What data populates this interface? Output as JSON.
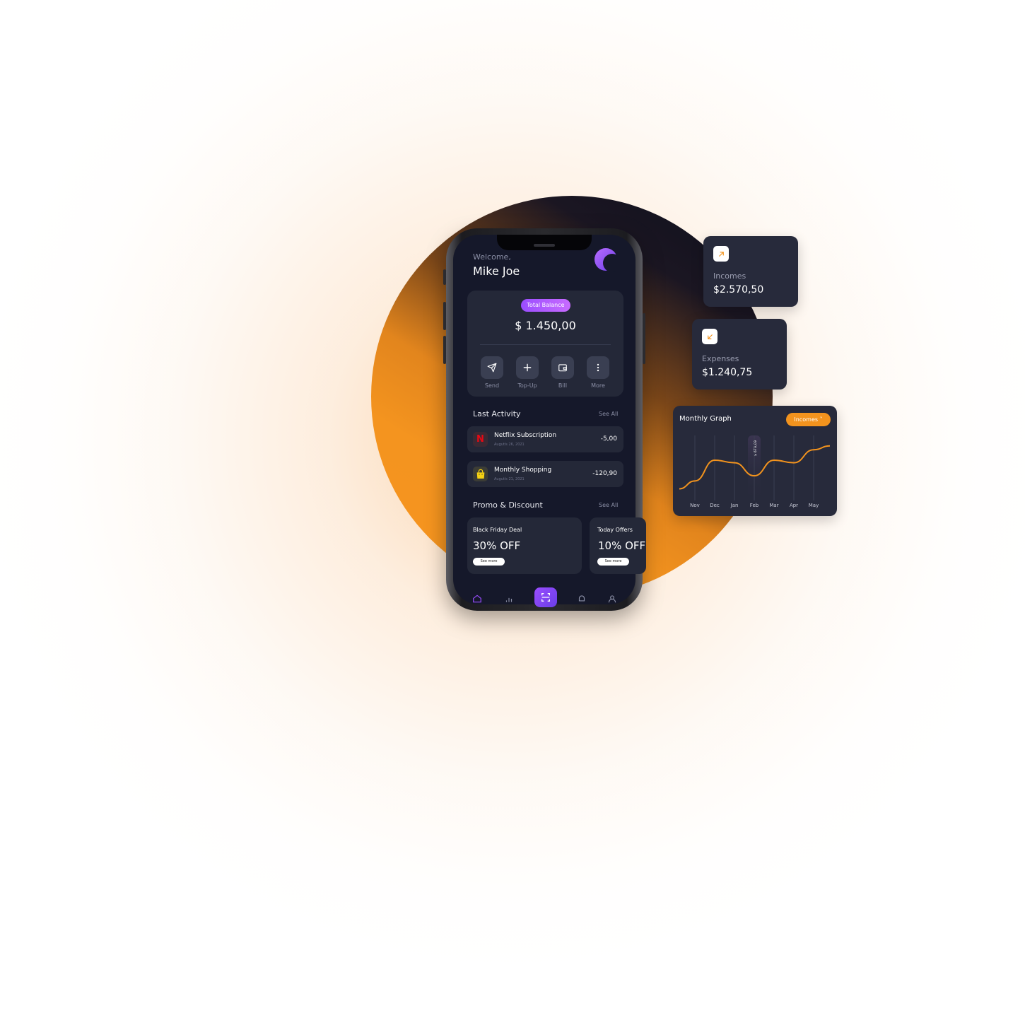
{
  "app": {
    "welcome": "Welcome,",
    "user_name": "Mike Joe"
  },
  "balance": {
    "badge": "Total Balance",
    "amount": "$ 1.450,00",
    "actions": [
      {
        "label": "Send",
        "icon": "send-icon"
      },
      {
        "label": "Top-Up",
        "icon": "plus-icon"
      },
      {
        "label": "Bill",
        "icon": "wallet-icon"
      },
      {
        "label": "More",
        "icon": "more-vertical-icon"
      }
    ]
  },
  "last_activity": {
    "title": "Last Activity",
    "see_all": "See All",
    "items": [
      {
        "title": "Netflix Subscription",
        "date": "Augutls 26, 2021",
        "amount": "-5,00",
        "icon": "netflix-logo"
      },
      {
        "title": "Monthly Shopping",
        "date": "Augutls 21, 2021",
        "amount": "-120,90",
        "icon": "shopping-bag-icon"
      }
    ]
  },
  "promo": {
    "title": "Promo & Discount",
    "see_all": "See All",
    "cards": [
      {
        "title": "Black Friday Deal",
        "value": "30% OFF",
        "button": "See more"
      },
      {
        "title": "Today Offers",
        "value": "10% OFF",
        "button": "See more"
      }
    ]
  },
  "bottom_nav": [
    "home-icon",
    "stats-icon",
    "scan-icon",
    "bell-icon",
    "profile-icon"
  ],
  "incomes_card": {
    "label": "Incomes",
    "value": "$2.570,50",
    "icon": "arrow-up-right-icon"
  },
  "expenses_card": {
    "label": "Expenses",
    "value": "$1.240,75",
    "icon": "arrow-down-left-icon"
  },
  "graph": {
    "title": "Monthly Graph",
    "dropdown": "Incomes",
    "tooltip": "$ 670,09"
  },
  "colors": {
    "accent_orange": "#f2931e",
    "accent_purple": "#9a4dff",
    "card_dark": "#272a3b",
    "screen_bg": "#15182a"
  },
  "chart_data": {
    "type": "line",
    "categories": [
      "Nov",
      "Dec",
      "Jan",
      "Feb",
      "Mar",
      "Apr",
      "May"
    ],
    "series": [
      {
        "values": [
          30,
          62,
          58,
          38,
          62,
          58,
          78
        ]
      }
    ],
    "ylim": [
      0,
      100
    ],
    "highlighted_category": "Feb"
  }
}
